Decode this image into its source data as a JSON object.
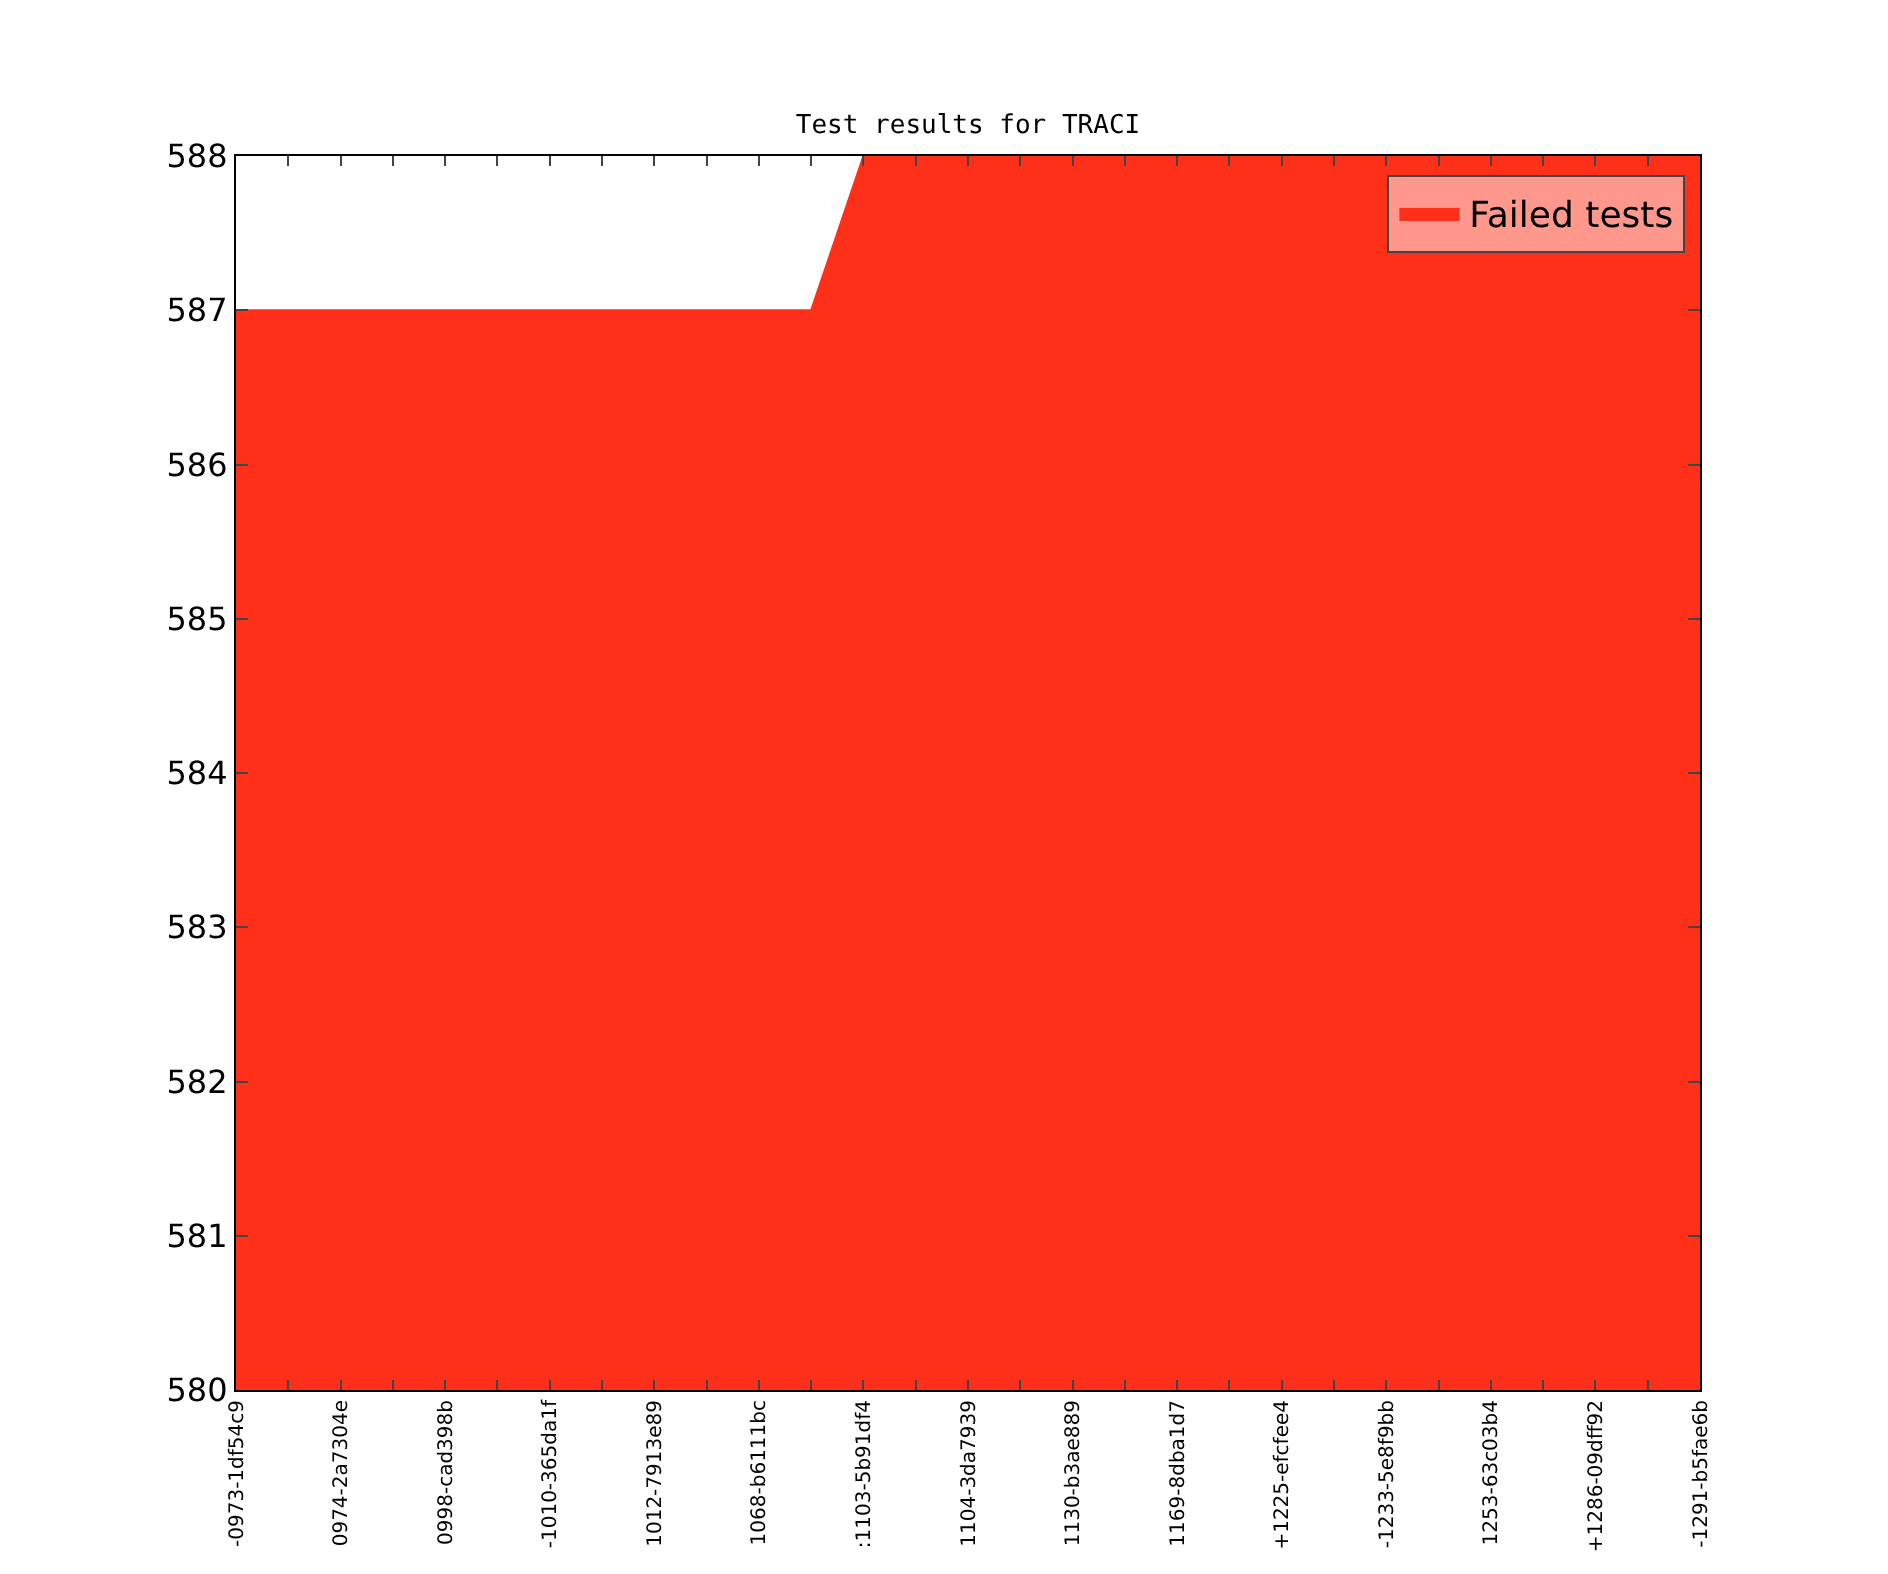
{
  "chart_data": {
    "type": "area",
    "title": "Test results for TRACI",
    "categories": [
      "-0973-1df54c9",
      null,
      "0974-2a7304e",
      null,
      "0998-cad398b",
      null,
      "-1010-365da1f",
      null,
      "1012-7913e89",
      null,
      "1068-b6111bc",
      null,
      ":1103-5b91df4",
      null,
      "1104-3da7939",
      null,
      "1130-b3ae889",
      null,
      "1169-8dba1d7",
      null,
      "+1225-efcfee4",
      null,
      "-1233-5e8f9bb",
      null,
      "1253-63c03b4",
      null,
      "+1286-09dff92",
      null,
      "-1291-b5fae6b"
    ],
    "series": [
      {
        "name": "Failed tests",
        "color": "#ff3019",
        "values": [
          587,
          587,
          587,
          587,
          587,
          587,
          587,
          587,
          587,
          587,
          587,
          587,
          588,
          588,
          588,
          588,
          588,
          588,
          588,
          588,
          588,
          588,
          588,
          588,
          588,
          588,
          588,
          588,
          588
        ]
      }
    ],
    "ylim": [
      580,
      588
    ],
    "yticks": [
      580,
      581,
      582,
      583,
      584,
      585,
      586,
      587,
      588
    ],
    "grid": false,
    "legend": "top right"
  }
}
